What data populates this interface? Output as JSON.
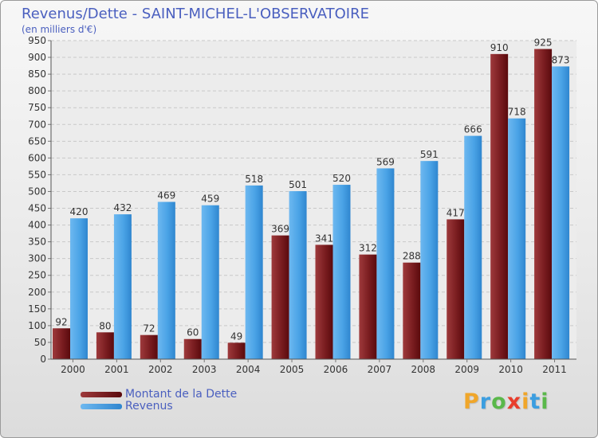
{
  "header": {
    "title": "Revenus/Dette - SAINT-MICHEL-L'OBSERVATOIRE",
    "subtitle": "(en milliers d'€)"
  },
  "legend": [
    {
      "label": "Montant de la Dette",
      "color": "#6b0f12"
    },
    {
      "label": "Revenus",
      "color": "#4aa3e6"
    }
  ],
  "brand": {
    "letters": [
      "P",
      "r",
      "o",
      "x",
      "i",
      "t",
      "i"
    ],
    "colors": [
      "#f0a62a",
      "#3c9ee0",
      "#5ab84a",
      "#e83d2c",
      "#f0a62a",
      "#3c9ee0",
      "#5ab84a"
    ]
  },
  "chart_data": {
    "type": "bar",
    "title": "Revenus/Dette - SAINT-MICHEL-L'OBSERVATOIRE",
    "ylabel": "(en milliers d'€)",
    "categories": [
      "2000",
      "2001",
      "2002",
      "2003",
      "2004",
      "2005",
      "2006",
      "2007",
      "2008",
      "2009",
      "2010",
      "2011"
    ],
    "series": [
      {
        "name": "Montant de la Dette",
        "color": "#6b0f12",
        "values": [
          92,
          80,
          72,
          60,
          49,
          369,
          341,
          312,
          288,
          417,
          910,
          925
        ]
      },
      {
        "name": "Revenus",
        "color": "#4aa3e6",
        "values": [
          420,
          432,
          469,
          459,
          518,
          501,
          520,
          569,
          591,
          666,
          718,
          873
        ]
      }
    ],
    "ylim": [
      0,
      950
    ],
    "ytick_step": 50,
    "grid": true
  }
}
